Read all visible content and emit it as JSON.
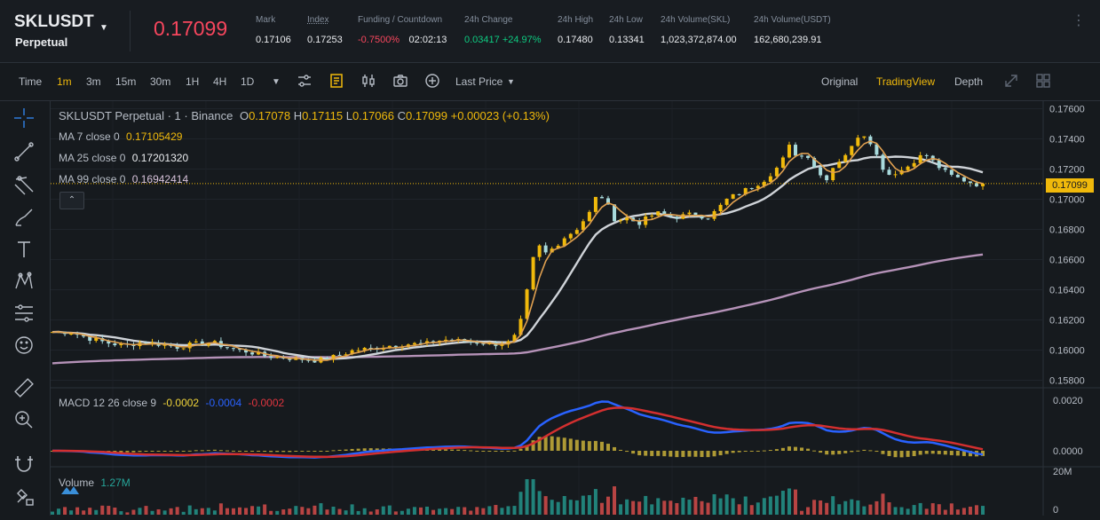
{
  "header": {
    "symbol": "SKLUSDT",
    "contract_type": "Perpetual",
    "last_price": "0.17099",
    "stats": [
      {
        "label": "Mark",
        "value": "0.17106",
        "label_underline": false
      },
      {
        "label": "Index",
        "value": "0.17253",
        "label_underline": true
      },
      {
        "label": "Funding / Countdown",
        "value": "-0.7500%",
        "value2": "02:02:13",
        "label_underline": false
      },
      {
        "label": "24h Change",
        "value": "0.03417 +24.97%",
        "label_underline": false
      },
      {
        "label": "24h High",
        "value": "0.17480",
        "label_underline": false
      },
      {
        "label": "24h Low",
        "value": "0.13341",
        "label_underline": false
      },
      {
        "label": "24h Volume(SKL)",
        "value": "1,023,372,874.00",
        "label_underline": false
      },
      {
        "label": "24h Volume(USDT)",
        "value": "162,680,239.91",
        "label_underline": false
      }
    ]
  },
  "toolbar": {
    "intervals": [
      "Time",
      "1m",
      "3m",
      "15m",
      "30m",
      "1H",
      "4H",
      "1D"
    ],
    "active_interval": "1m",
    "price_type": "Last Price",
    "views": [
      "Original",
      "TradingView",
      "Depth"
    ],
    "active_view": "TradingView"
  },
  "legend": {
    "title": "SKLUSDT Perpetual · 1 · Binance",
    "open_label": "O",
    "open": "0.17078",
    "high_label": "H",
    "high": "0.17115",
    "low_label": "L",
    "low": "0.17066",
    "close_label": "C",
    "close": "0.17099",
    "change": "+0.00023 (+0.13%)",
    "ma7_label": "MA 7 close 0",
    "ma7_value": "0.17105429",
    "ma25_label": "MA 25 close 0",
    "ma25_value": "0.17201320",
    "ma99_label": "MA 99 close 0",
    "ma99_value": "0.16942414",
    "macd_label": "MACD 12 26 close 9",
    "macd_value1": "-0.0002",
    "macd_value2": "-0.0004",
    "macd_value3": "-0.0002",
    "volume_label": "Volume",
    "volume_value": "1.27M"
  },
  "axes": {
    "price_ticks": [
      "0.17600",
      "0.17400",
      "0.17200",
      "0.17000",
      "0.16800",
      "0.16600",
      "0.16400",
      "0.16200",
      "0.16000",
      "0.15800"
    ],
    "current_price_tag": "0.17099",
    "macd_ticks": [
      "0.0020",
      "0.0000"
    ],
    "volume_ticks": [
      "20M",
      "0"
    ]
  },
  "colors": {
    "up": "#f0b90b",
    "down": "#a8dadc",
    "ma7": "#e0a050",
    "ma25": "#cfd3d8",
    "ma99": "#b592b8",
    "macd_line": "#2962ff",
    "signal_line": "#d32f2f",
    "hist_pos": "#c9b23a",
    "vol_up": "#26a69a",
    "vol_down": "#ef5350",
    "accent": "#f0b90b",
    "negative": "#f6465d",
    "positive": "#0ecb81"
  },
  "chart_data": {
    "type": "candlestick",
    "interval": "1m",
    "ylim": [
      0.1575,
      0.1765
    ],
    "ma99_start": 0.1591,
    "close_points": [
      [
        0,
        0.1612
      ],
      [
        20,
        0.1612
      ],
      [
        40,
        0.1608
      ],
      [
        60,
        0.1605
      ],
      [
        80,
        0.1603
      ],
      [
        100,
        0.1605
      ],
      [
        120,
        0.1604
      ],
      [
        140,
        0.1602
      ],
      [
        160,
        0.1604
      ],
      [
        180,
        0.1605
      ],
      [
        200,
        0.1601
      ],
      [
        220,
        0.1599
      ],
      [
        240,
        0.1596
      ],
      [
        260,
        0.1595
      ],
      [
        280,
        0.1594
      ],
      [
        300,
        0.1593
      ],
      [
        320,
        0.1596
      ],
      [
        340,
        0.16
      ],
      [
        360,
        0.1601
      ],
      [
        380,
        0.1603
      ],
      [
        400,
        0.1604
      ],
      [
        420,
        0.1604
      ],
      [
        440,
        0.1607
      ],
      [
        460,
        0.1606
      ],
      [
        480,
        0.1605
      ],
      [
        500,
        0.1604
      ],
      [
        515,
        0.1605
      ],
      [
        525,
        0.1612
      ],
      [
        535,
        0.164
      ],
      [
        545,
        0.1671
      ],
      [
        555,
        0.1664
      ],
      [
        565,
        0.1668
      ],
      [
        575,
        0.1674
      ],
      [
        590,
        0.168
      ],
      [
        605,
        0.1691
      ],
      [
        615,
        0.1705
      ],
      [
        625,
        0.1696
      ],
      [
        635,
        0.1685
      ],
      [
        645,
        0.1688
      ],
      [
        660,
        0.1684
      ],
      [
        680,
        0.1691
      ],
      [
        700,
        0.1688
      ],
      [
        720,
        0.169
      ],
      [
        740,
        0.1688
      ],
      [
        760,
        0.17
      ],
      [
        780,
        0.1706
      ],
      [
        800,
        0.1712
      ],
      [
        820,
        0.1723
      ],
      [
        830,
        0.1735
      ],
      [
        840,
        0.1728
      ],
      [
        850,
        0.173
      ],
      [
        860,
        0.172
      ],
      [
        870,
        0.1712
      ],
      [
        880,
        0.1722
      ],
      [
        900,
        0.1734
      ],
      [
        910,
        0.1745
      ],
      [
        920,
        0.174
      ],
      [
        930,
        0.1727
      ],
      [
        940,
        0.1716
      ],
      [
        960,
        0.172
      ],
      [
        975,
        0.1728
      ],
      [
        985,
        0.1729
      ],
      [
        995,
        0.1723
      ],
      [
        1010,
        0.1716
      ],
      [
        1025,
        0.1713
      ],
      [
        1035,
        0.1711
      ],
      [
        1048,
        0.1709
      ]
    ]
  }
}
